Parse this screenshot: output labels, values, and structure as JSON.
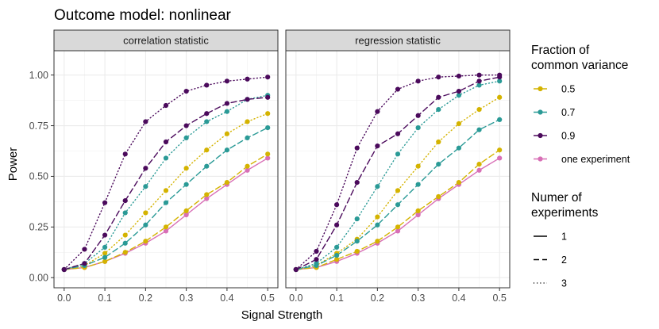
{
  "chart_data": {
    "type": "line",
    "title": "Outcome model: nonlinear",
    "xlabel": "Signal Strength",
    "ylabel": "Power",
    "xlim": [
      -0.025,
      0.525
    ],
    "ylim": [
      -0.05,
      1.12
    ],
    "xticks": [
      0.0,
      0.1,
      0.2,
      0.3,
      0.4,
      0.5
    ],
    "xtick_labels": [
      "0.0",
      "0.1",
      "0.2",
      "0.3",
      "0.4",
      "0.5"
    ],
    "yticks": [
      0.0,
      0.25,
      0.5,
      0.75,
      1.0
    ],
    "ytick_labels": [
      "0.00",
      "0.25",
      "0.50",
      "0.75",
      "1.00"
    ],
    "x": [
      0.0,
      0.05,
      0.1,
      0.15,
      0.2,
      0.25,
      0.3,
      0.35,
      0.4,
      0.45,
      0.5
    ],
    "grid": true,
    "legend_position": "right",
    "colors": {
      "0.5": "#D4B300",
      "0.7": "#2A9A96",
      "0.9": "#4B0A5C",
      "one experiment": "#D86FB6"
    },
    "legends": [
      {
        "title": "Fraction of\ncommon variance",
        "items": [
          {
            "label": "0.5",
            "key": "0.5"
          },
          {
            "label": "0.7",
            "key": "0.7"
          },
          {
            "label": "0.9",
            "key": "0.9"
          },
          {
            "label": "one experiment",
            "key": "one experiment"
          }
        ]
      },
      {
        "title": "Numer of\nexperiments",
        "items": [
          {
            "label": "1",
            "linetype": "solid"
          },
          {
            "label": "2",
            "linetype": "dashed"
          },
          {
            "label": "3",
            "linetype": "dotted"
          }
        ]
      }
    ],
    "panels": [
      {
        "strip": "correlation statistic",
        "series": [
          {
            "fraction": "one experiment",
            "experiments": 1,
            "values": [
              0.04,
              0.05,
              0.08,
              0.12,
              0.17,
              0.23,
              0.31,
              0.39,
              0.46,
              0.53,
              0.59
            ]
          },
          {
            "fraction": "0.5",
            "experiments": 2,
            "values": [
              0.04,
              0.05,
              0.08,
              0.125,
              0.18,
              0.25,
              0.33,
              0.41,
              0.47,
              0.55,
              0.61
            ]
          },
          {
            "fraction": "0.5",
            "experiments": 3,
            "values": [
              0.04,
              0.06,
              0.12,
              0.21,
              0.32,
              0.43,
              0.54,
              0.63,
              0.71,
              0.77,
              0.81
            ]
          },
          {
            "fraction": "0.7",
            "experiments": 2,
            "values": [
              0.04,
              0.06,
              0.1,
              0.17,
              0.26,
              0.37,
              0.46,
              0.55,
              0.63,
              0.69,
              0.74
            ]
          },
          {
            "fraction": "0.7",
            "experiments": 3,
            "values": [
              0.04,
              0.07,
              0.15,
              0.32,
              0.45,
              0.59,
              0.69,
              0.77,
              0.82,
              0.88,
              0.9
            ]
          },
          {
            "fraction": "0.9",
            "experiments": 2,
            "values": [
              0.04,
              0.07,
              0.21,
              0.38,
              0.54,
              0.67,
              0.75,
              0.81,
              0.86,
              0.88,
              0.89
            ]
          },
          {
            "fraction": "0.9",
            "experiments": 3,
            "values": [
              0.04,
              0.14,
              0.37,
              0.61,
              0.77,
              0.85,
              0.92,
              0.95,
              0.97,
              0.98,
              0.99
            ]
          }
        ]
      },
      {
        "strip": "regression statistic",
        "series": [
          {
            "fraction": "one experiment",
            "experiments": 1,
            "values": [
              0.04,
              0.05,
              0.08,
              0.12,
              0.17,
              0.23,
              0.31,
              0.39,
              0.46,
              0.53,
              0.59
            ]
          },
          {
            "fraction": "0.5",
            "experiments": 2,
            "values": [
              0.04,
              0.05,
              0.09,
              0.13,
              0.18,
              0.25,
              0.33,
              0.4,
              0.47,
              0.56,
              0.63
            ]
          },
          {
            "fraction": "0.5",
            "experiments": 3,
            "values": [
              0.04,
              0.06,
              0.12,
              0.19,
              0.3,
              0.43,
              0.55,
              0.67,
              0.76,
              0.83,
              0.89
            ]
          },
          {
            "fraction": "0.7",
            "experiments": 2,
            "values": [
              0.04,
              0.06,
              0.11,
              0.18,
              0.26,
              0.36,
              0.46,
              0.56,
              0.64,
              0.73,
              0.78
            ]
          },
          {
            "fraction": "0.7",
            "experiments": 3,
            "values": [
              0.04,
              0.07,
              0.15,
              0.29,
              0.45,
              0.61,
              0.74,
              0.83,
              0.9,
              0.95,
              0.97
            ]
          },
          {
            "fraction": "0.9",
            "experiments": 2,
            "values": [
              0.04,
              0.09,
              0.26,
              0.47,
              0.65,
              0.71,
              0.8,
              0.89,
              0.92,
              0.97,
              0.99
            ]
          },
          {
            "fraction": "0.9",
            "experiments": 3,
            "values": [
              0.04,
              0.13,
              0.36,
              0.64,
              0.82,
              0.93,
              0.97,
              0.99,
              0.995,
              1.0,
              1.0
            ]
          }
        ]
      }
    ]
  }
}
